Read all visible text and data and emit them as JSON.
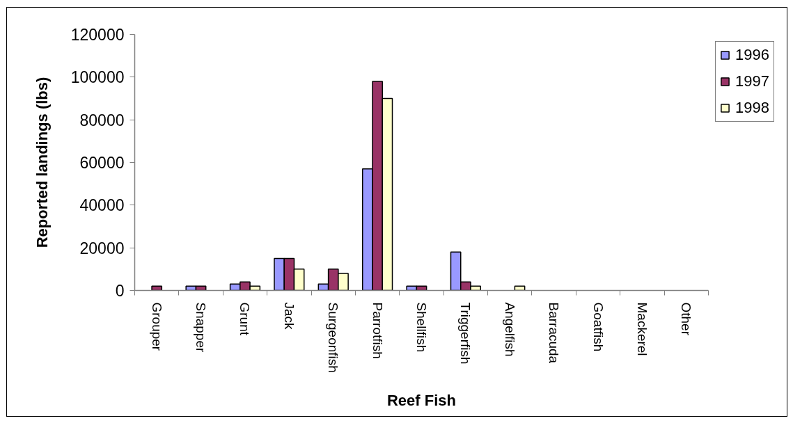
{
  "chart_data": {
    "type": "bar",
    "xlabel": "Reef Fish",
    "ylabel": "Reported landings (lbs)",
    "categories": [
      "Grouper",
      "Snapper",
      "Grunt",
      "Jack",
      "Surgeonfish",
      "Parrotfish",
      "Shellfish",
      "Triggerfish",
      "Angelfish",
      "Barracuda",
      "Goatfish",
      "Mackerel",
      "Other"
    ],
    "series": [
      {
        "name": "1996",
        "color": "#9999ff",
        "values": [
          null,
          2000,
          3000,
          15000,
          3000,
          57000,
          2000,
          18000,
          null,
          null,
          null,
          null,
          null
        ]
      },
      {
        "name": "1997",
        "color": "#993366",
        "values": [
          2000,
          2000,
          4000,
          15000,
          10000,
          98000,
          2000,
          4000,
          null,
          null,
          null,
          null,
          null
        ]
      },
      {
        "name": "1998",
        "color": "#ffffcc",
        "values": [
          null,
          null,
          2000,
          10000,
          8000,
          90000,
          null,
          2000,
          2000,
          null,
          null,
          null,
          null
        ]
      }
    ],
    "ylim": [
      0,
      120000
    ],
    "yticks": [
      0,
      20000,
      40000,
      60000,
      80000,
      100000,
      120000
    ],
    "grid": false,
    "legend": "top right"
  }
}
